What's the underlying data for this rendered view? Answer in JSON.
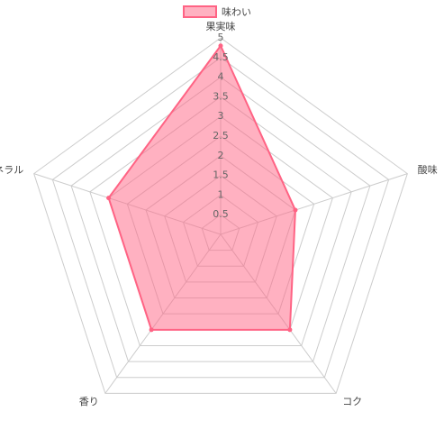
{
  "chart_data": {
    "type": "radar",
    "categories": [
      "果実味",
      "酸味",
      "コク",
      "香り",
      "ミネラル"
    ],
    "series": [
      {
        "name": "味わい",
        "color": "#ff6384",
        "values": [
          4.8,
          2,
          3,
          3,
          3
        ]
      }
    ],
    "ylim": [
      0,
      5
    ],
    "yticks": [
      0.5,
      1,
      1.5,
      2,
      2.5,
      3,
      3.5,
      4,
      4.5,
      5
    ],
    "grid": true,
    "legend": "top"
  }
}
